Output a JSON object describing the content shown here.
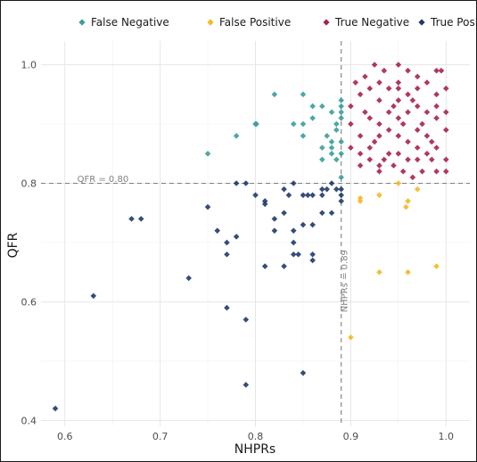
{
  "chart_data": {
    "type": "scatter",
    "title": "",
    "xlabel": "NHPRs",
    "ylabel": "QFR",
    "xlim": [
      0.575,
      1.025
    ],
    "ylim": [
      0.39,
      1.04
    ],
    "x_ticks": [
      0.6,
      0.7,
      0.8,
      0.9,
      1.0
    ],
    "x_tick_labels": [
      "0.6",
      "0.7",
      "0.8",
      "0.9",
      "1.0"
    ],
    "y_ticks": [
      0.4,
      0.6,
      0.8,
      1.0
    ],
    "y_tick_labels": [
      "0.4",
      "0.6",
      "0.8",
      "1.0"
    ],
    "grid": true,
    "legend_position": "top",
    "thresholds": [
      {
        "axis": "y",
        "value": 0.8,
        "label": "QFR = 0.80"
      },
      {
        "axis": "x",
        "value": 0.89,
        "label": "NHPRs = 0.89"
      }
    ],
    "series": [
      {
        "name": "False Negative",
        "color": "#3a9e9b",
        "points": [
          [
            0.75,
            0.85
          ],
          [
            0.78,
            0.88
          ],
          [
            0.8,
            0.9
          ],
          [
            0.801,
            0.9
          ],
          [
            0.82,
            0.95
          ],
          [
            0.84,
            0.9
          ],
          [
            0.85,
            0.9
          ],
          [
            0.85,
            0.95
          ],
          [
            0.85,
            0.88
          ],
          [
            0.86,
            0.91
          ],
          [
            0.86,
            0.93
          ],
          [
            0.87,
            0.93
          ],
          [
            0.87,
            0.86
          ],
          [
            0.875,
            0.88
          ],
          [
            0.88,
            0.92
          ],
          [
            0.88,
            0.87
          ],
          [
            0.88,
            0.86
          ],
          [
            0.885,
            0.89
          ],
          [
            0.885,
            0.9
          ],
          [
            0.89,
            0.91
          ],
          [
            0.89,
            0.93
          ],
          [
            0.89,
            0.94
          ],
          [
            0.89,
            0.85
          ],
          [
            0.885,
            0.84
          ],
          [
            0.89,
            0.81
          ],
          [
            0.87,
            0.84
          ],
          [
            0.89,
            0.87
          ],
          [
            0.89,
            0.92
          ],
          [
            0.88,
            0.85
          ]
        ]
      },
      {
        "name": "False Positive",
        "color": "#f5b824",
        "points": [
          [
            0.9,
            0.54
          ],
          [
            0.91,
            0.77
          ],
          [
            0.91,
            0.775
          ],
          [
            0.93,
            0.78
          ],
          [
            0.93,
            0.65
          ],
          [
            0.95,
            0.8
          ],
          [
            0.96,
            0.77
          ],
          [
            0.96,
            0.65
          ],
          [
            0.97,
            0.79
          ],
          [
            0.99,
            0.66
          ],
          [
            0.958,
            0.76
          ]
        ]
      },
      {
        "name": "True Negative",
        "color": "#a8224a",
        "points": [
          [
            0.9,
            0.93
          ],
          [
            0.9,
            0.9
          ],
          [
            0.91,
            0.95
          ],
          [
            0.91,
            0.88
          ],
          [
            0.91,
            0.85
          ],
          [
            0.91,
            0.83
          ],
          [
            0.915,
            0.98
          ],
          [
            0.92,
            0.96
          ],
          [
            0.92,
            0.91
          ],
          [
            0.92,
            0.86
          ],
          [
            0.925,
            1.0
          ],
          [
            0.93,
            0.97
          ],
          [
            0.93,
            0.94
          ],
          [
            0.93,
            0.9
          ],
          [
            0.93,
            0.88
          ],
          [
            0.93,
            0.82
          ],
          [
            0.935,
            0.99
          ],
          [
            0.94,
            0.96
          ],
          [
            0.94,
            0.92
          ],
          [
            0.94,
            0.89
          ],
          [
            0.94,
            0.85
          ],
          [
            0.945,
            0.83
          ],
          [
            0.95,
            1.0
          ],
          [
            0.95,
            0.97
          ],
          [
            0.95,
            0.94
          ],
          [
            0.95,
            0.91
          ],
          [
            0.95,
            0.88
          ],
          [
            0.95,
            0.85
          ],
          [
            0.955,
            0.82
          ],
          [
            0.96,
            0.99
          ],
          [
            0.96,
            0.95
          ],
          [
            0.96,
            0.92
          ],
          [
            0.96,
            0.87
          ],
          [
            0.96,
            0.84
          ],
          [
            0.965,
            0.81
          ],
          [
            0.97,
            0.98
          ],
          [
            0.97,
            0.96
          ],
          [
            0.97,
            0.93
          ],
          [
            0.97,
            0.89
          ],
          [
            0.97,
            0.86
          ],
          [
            0.975,
            0.82
          ],
          [
            0.98,
            0.97
          ],
          [
            0.98,
            0.92
          ],
          [
            0.98,
            0.88
          ],
          [
            0.98,
            0.85
          ],
          [
            0.985,
            0.84
          ],
          [
            0.99,
            0.99
          ],
          [
            0.99,
            0.95
          ],
          [
            0.99,
            0.91
          ],
          [
            0.99,
            0.86
          ],
          [
            0.99,
            0.82
          ],
          [
            0.995,
            0.99
          ],
          [
            1.0,
            0.96
          ],
          [
            1.0,
            0.92
          ],
          [
            1.0,
            0.89
          ],
          [
            1.0,
            0.84
          ],
          [
            1.0,
            0.82
          ],
          [
            0.905,
            0.97
          ],
          [
            0.915,
            0.92
          ],
          [
            0.925,
            0.87
          ],
          [
            0.935,
            0.84
          ],
          [
            0.945,
            0.93
          ],
          [
            0.955,
            0.9
          ],
          [
            0.965,
            0.94
          ],
          [
            0.975,
            0.9
          ],
          [
            0.985,
            0.87
          ],
          [
            0.92,
            0.84
          ],
          [
            0.9,
            0.86
          ],
          [
            0.93,
            0.83
          ],
          [
            0.95,
            0.96
          ],
          [
            0.97,
            0.84
          ],
          [
            0.99,
            0.93
          ]
        ]
      },
      {
        "name": "True Positive",
        "color": "#1f3a6b",
        "points": [
          [
            0.59,
            0.42
          ],
          [
            0.63,
            0.61
          ],
          [
            0.67,
            0.74
          ],
          [
            0.68,
            0.74
          ],
          [
            0.73,
            0.64
          ],
          [
            0.75,
            0.76
          ],
          [
            0.76,
            0.72
          ],
          [
            0.77,
            0.7
          ],
          [
            0.77,
            0.68
          ],
          [
            0.77,
            0.59
          ],
          [
            0.78,
            0.8
          ],
          [
            0.78,
            0.71
          ],
          [
            0.79,
            0.8
          ],
          [
            0.79,
            0.57
          ],
          [
            0.79,
            0.46
          ],
          [
            0.8,
            0.78
          ],
          [
            0.81,
            0.77
          ],
          [
            0.81,
            0.765
          ],
          [
            0.81,
            0.66
          ],
          [
            0.82,
            0.72
          ],
          [
            0.82,
            0.74
          ],
          [
            0.83,
            0.79
          ],
          [
            0.83,
            0.75
          ],
          [
            0.83,
            0.66
          ],
          [
            0.84,
            0.8
          ],
          [
            0.84,
            0.72
          ],
          [
            0.84,
            0.7
          ],
          [
            0.84,
            0.68
          ],
          [
            0.845,
            0.68
          ],
          [
            0.85,
            0.78
          ],
          [
            0.85,
            0.73
          ],
          [
            0.85,
            0.48
          ],
          [
            0.86,
            0.78
          ],
          [
            0.86,
            0.73
          ],
          [
            0.86,
            0.68
          ],
          [
            0.86,
            0.67
          ],
          [
            0.87,
            0.79
          ],
          [
            0.87,
            0.75
          ],
          [
            0.875,
            0.79
          ],
          [
            0.88,
            0.75
          ],
          [
            0.88,
            0.8
          ],
          [
            0.885,
            0.79
          ],
          [
            0.89,
            0.78
          ],
          [
            0.89,
            0.77
          ],
          [
            0.89,
            0.79
          ],
          [
            0.87,
            0.78
          ],
          [
            0.855,
            0.78
          ],
          [
            0.835,
            0.78
          ]
        ]
      }
    ]
  }
}
